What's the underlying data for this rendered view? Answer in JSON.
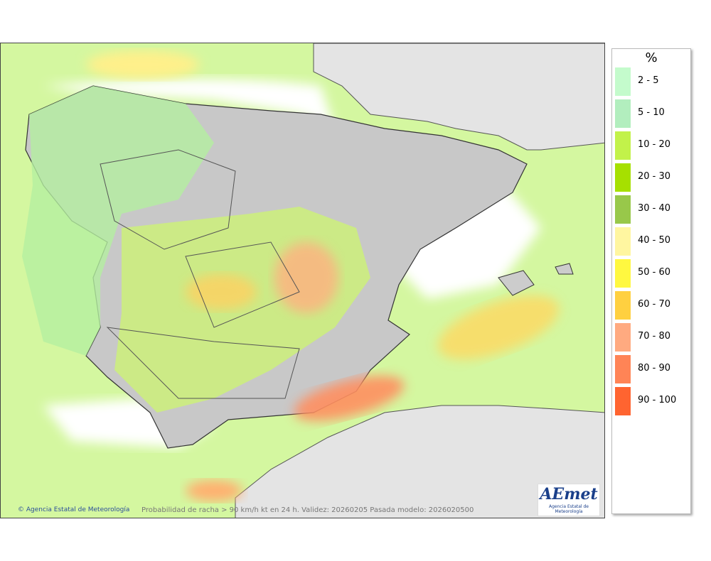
{
  "legend": {
    "title": "%",
    "items": [
      {
        "label": "2 - 5",
        "color": "#c4fbcc"
      },
      {
        "label": "5 - 10",
        "color": "#b2eebe"
      },
      {
        "label": "10 - 20",
        "color": "#c2f24a"
      },
      {
        "label": "20 - 30",
        "color": "#a6e000"
      },
      {
        "label": "30 - 40",
        "color": "#98c84a"
      },
      {
        "label": "40 - 50",
        "color": "#fff6a0"
      },
      {
        "label": "50 - 60",
        "color": "#fff840"
      },
      {
        "label": "60 - 70",
        "color": "#ffd040"
      },
      {
        "label": "70 - 80",
        "color": "#ffaa80"
      },
      {
        "label": "80 - 90",
        "color": "#ff8456"
      },
      {
        "label": "90 - 100",
        "color": "#ff6430"
      }
    ]
  },
  "footer": {
    "credit": "© Agencia Estatal de Meteorología",
    "caption": "Probabilidad de racha > 90 km/h kt en 24 h. Validez: 20260205 Pasada modelo: 2026020500"
  },
  "logo": {
    "name": "AEmet",
    "subtitle": "Agencia Estatal de Meteorología"
  }
}
